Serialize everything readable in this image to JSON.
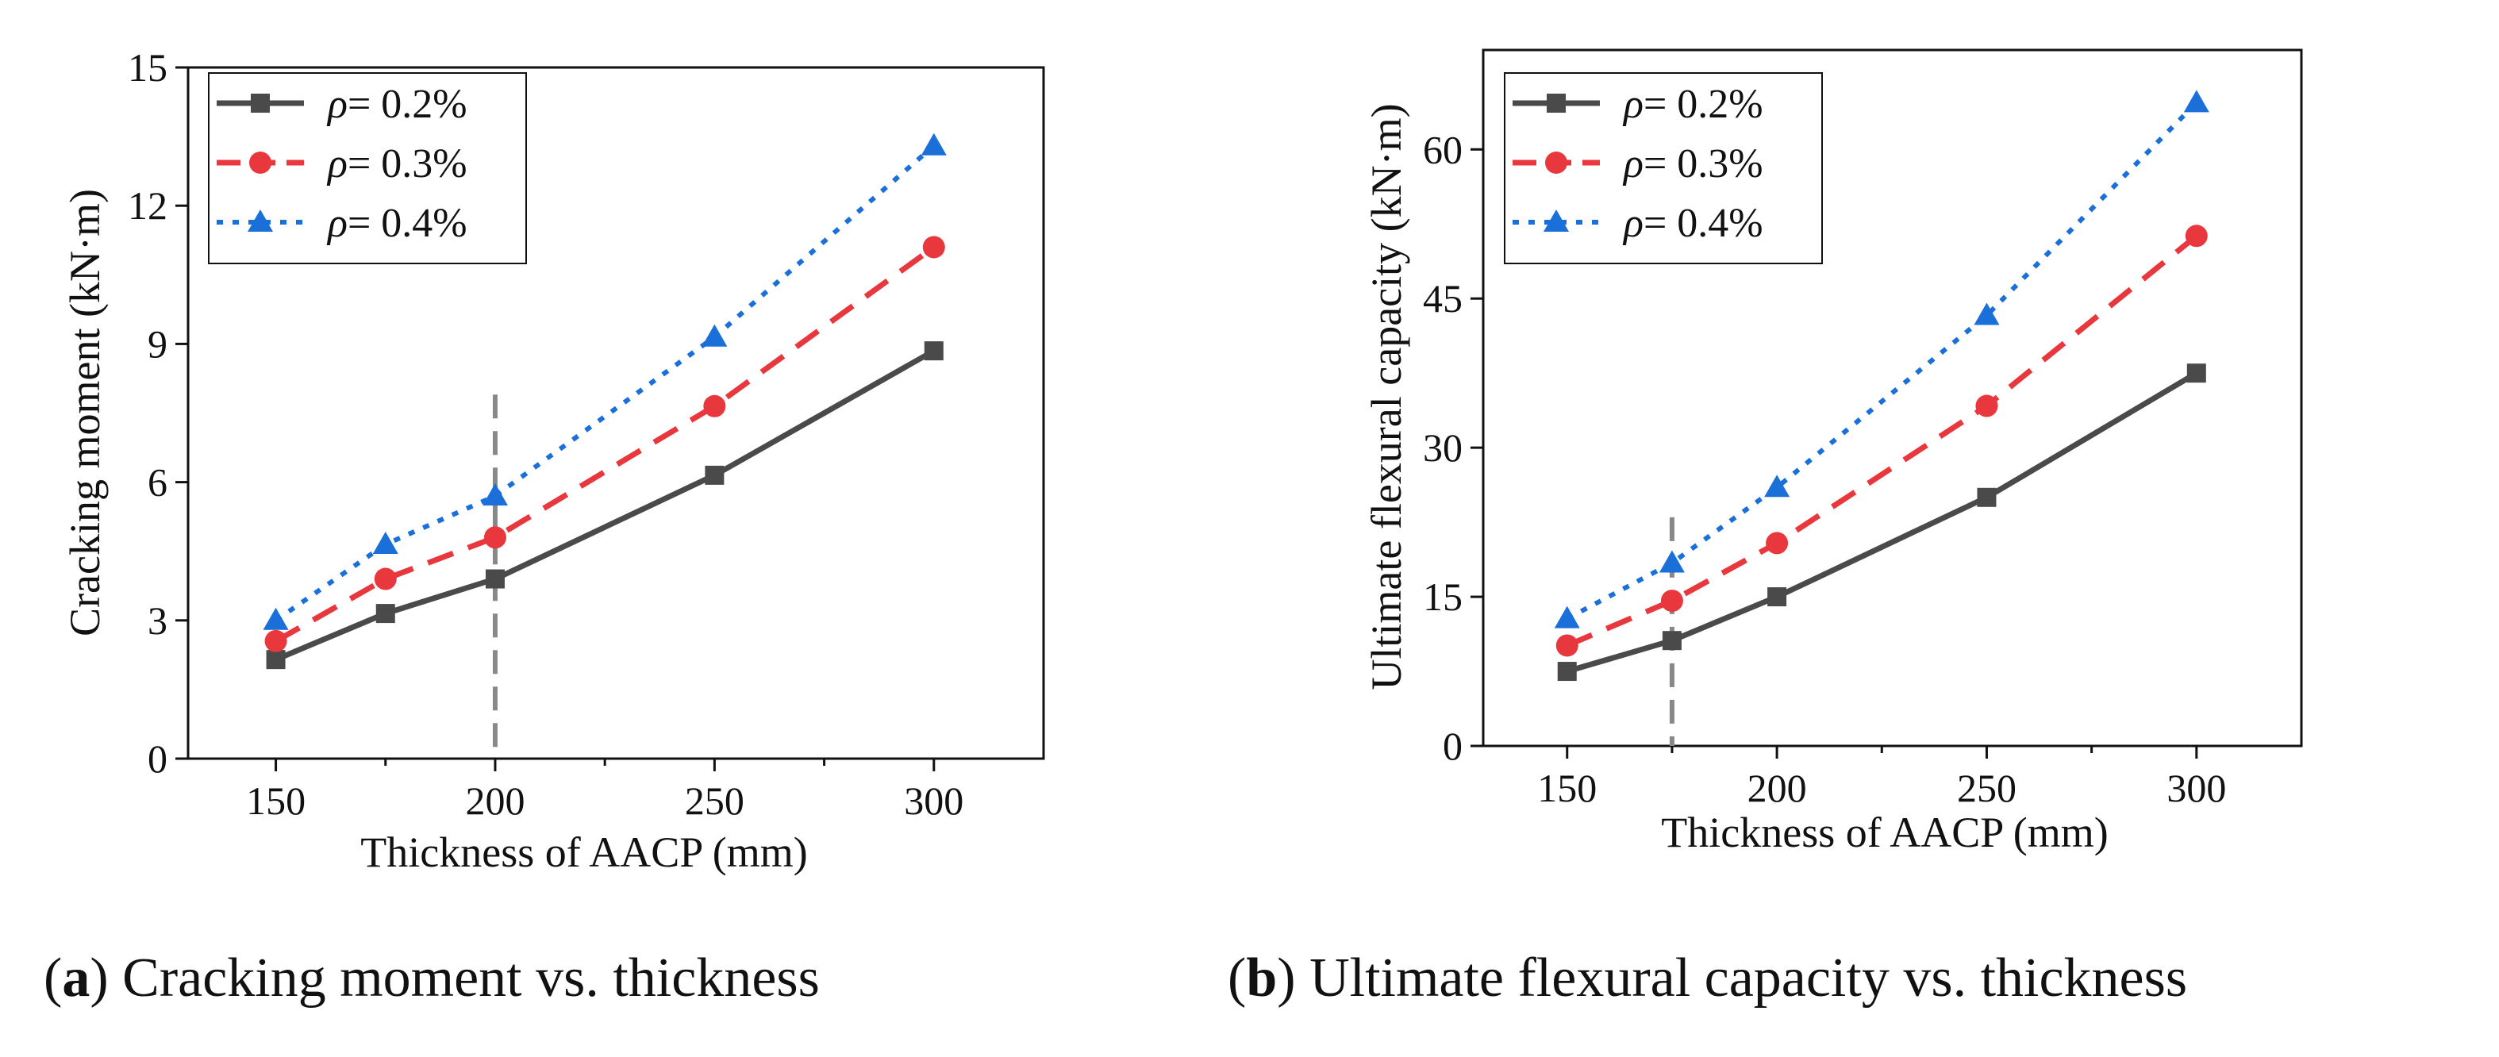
{
  "chart_data": [
    {
      "panel_label": "a",
      "type": "line",
      "title": "Cracking moment vs. thickness",
      "xlabel": "Thickness of AACP (mm)",
      "ylabel": "Cracking moment (kN·m)",
      "xlim": [
        130,
        325
      ],
      "ylim": [
        0,
        15
      ],
      "xticks": [
        150,
        200,
        250,
        300
      ],
      "yticks": [
        0,
        3,
        6,
        9,
        12,
        15
      ],
      "reference_line_x": 200,
      "reference_line_y_range": [
        0,
        7.9
      ],
      "legend_position": "top-left",
      "series": [
        {
          "name": "ρ= 0.2%",
          "legend_symbol": "ρ",
          "legend_text": "= 0.2%",
          "color": "#4a4a4a",
          "marker": "square",
          "line_style": "solid",
          "x": [
            150,
            175,
            200,
            250,
            300
          ],
          "y": [
            2.15,
            3.15,
            3.9,
            6.15,
            8.85
          ]
        },
        {
          "name": "ρ= 0.3%",
          "legend_symbol": "ρ",
          "legend_text": "= 0.3%",
          "color": "#e8383d",
          "marker": "circle",
          "line_style": "dashed",
          "x": [
            150,
            175,
            200,
            250,
            300
          ],
          "y": [
            2.55,
            3.9,
            4.8,
            7.65,
            11.1
          ]
        },
        {
          "name": "ρ= 0.4%",
          "legend_symbol": "ρ",
          "legend_text": "= 0.4%",
          "color": "#1a6fd8",
          "marker": "triangle",
          "line_style": "dotted",
          "x": [
            150,
            175,
            200,
            250,
            300
          ],
          "y": [
            3.0,
            4.65,
            5.7,
            9.15,
            13.3
          ]
        }
      ]
    },
    {
      "panel_label": "b",
      "type": "line",
      "title": "Ultimate flexural capacity vs. thickness",
      "xlabel": "Thickness of AACP (mm)",
      "ylabel": "Ultimate flexural capacity (kN·m)",
      "xlim": [
        130,
        325
      ],
      "ylim": [
        0,
        70
      ],
      "xticks": [
        150,
        200,
        250,
        300
      ],
      "yticks": [
        0,
        15,
        30,
        45,
        60
      ],
      "reference_line_x": 175,
      "reference_line_y_range": [
        0,
        23
      ],
      "legend_position": "top-left",
      "series": [
        {
          "name": "ρ= 0.2%",
          "legend_symbol": "ρ",
          "legend_text": "= 0.2%",
          "color": "#4a4a4a",
          "marker": "square",
          "line_style": "solid",
          "x": [
            150,
            175,
            200,
            250,
            300
          ],
          "y": [
            7.5,
            10.6,
            15.0,
            25.0,
            37.5
          ]
        },
        {
          "name": "ρ= 0.3%",
          "legend_symbol": "ρ",
          "legend_text": "= 0.3%",
          "color": "#e8383d",
          "marker": "circle",
          "line_style": "dashed",
          "x": [
            150,
            175,
            200,
            250,
            300
          ],
          "y": [
            10.1,
            14.6,
            20.4,
            34.2,
            51.3
          ]
        },
        {
          "name": "ρ= 0.4%",
          "legend_symbol": "ρ",
          "legend_text": "= 0.4%",
          "color": "#1a6fd8",
          "marker": "triangle",
          "line_style": "dotted",
          "x": [
            150,
            175,
            200,
            250,
            300
          ],
          "y": [
            12.8,
            18.4,
            26.0,
            43.3,
            64.7
          ]
        }
      ]
    }
  ]
}
